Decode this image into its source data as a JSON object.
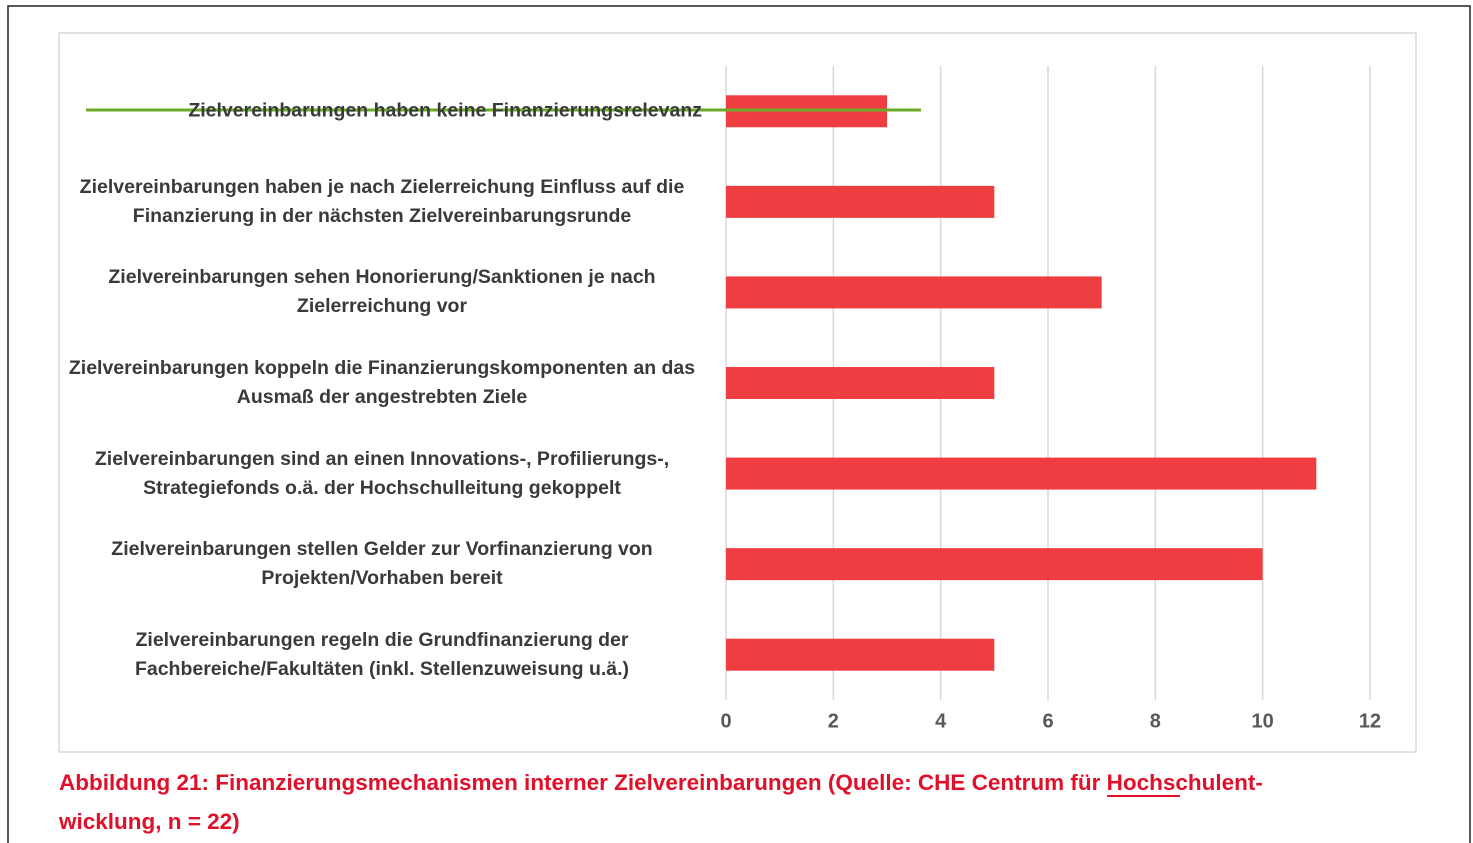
{
  "chart_data": {
    "type": "barh",
    "categories": [
      "Zielvereinbarungen haben keine Finanzierungsrelevanz",
      "Zielvereinbarungen haben je nach Zielerreichung Einfluss auf die Finanzierung in der nächsten Zielvereinbarungsrunde",
      "Zielvereinbarungen sehen Honorierung/Sanktionen je nach Zielerreichung vor",
      "Zielvereinbarungen koppeln die Finanzierungskomponenten an das Ausmaß der angestrebten Ziele",
      "Zielvereinbarungen sind an einen Innovations-, Profilierungs-, Strategiefonds o.ä. der Hochschulleitung gekoppelt",
      "Zielvereinbarungen stellen Gelder zur Vorfinanzierung von Projekten/Vorhaben bereit",
      "Zielvereinbarungen regeln die Grundfinanzierung der Fachbereiche/Fakultäten (inkl. Stellenzuweisung u.ä.)"
    ],
    "values": [
      3,
      5,
      7,
      5,
      11,
      10,
      5
    ],
    "color": "#ef3e42",
    "xlim": [
      0,
      12
    ],
    "xticks": [
      0,
      2,
      4,
      6,
      8,
      10,
      12
    ],
    "grid": true,
    "caption": [
      "Abbildung 21: Finanzierungsmechanismen interner Zielvereinbarungen (Quelle: CHE Centrum für Hochschulent-",
      "wicklung, n = 22)"
    ]
  }
}
